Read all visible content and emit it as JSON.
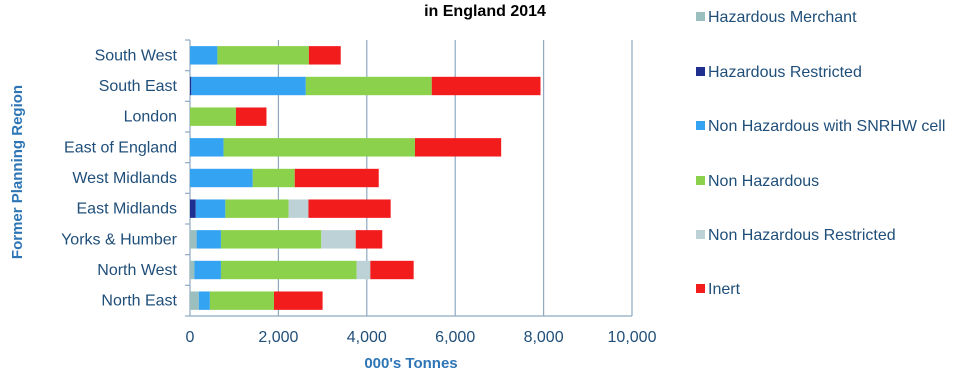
{
  "chart_data": {
    "type": "bar",
    "orientation": "horizontal",
    "stacked": true,
    "title": "in England 2014",
    "xlabel": "000's Tonnes",
    "ylabel": "Former Planning Region",
    "xlim": [
      0,
      10000
    ],
    "xticks": [
      0,
      2000,
      4000,
      6000,
      8000,
      10000
    ],
    "xtick_labels": [
      "0",
      "2,000",
      "4,000",
      "6,000",
      "8,000",
      "10,000"
    ],
    "grid": "vertical",
    "legend_position": "right",
    "categories": [
      "North East",
      "North West",
      "Yorks & Humber",
      "East Midlands",
      "West Midlands",
      "East of England",
      "London",
      "South East",
      "South West"
    ],
    "series": [
      {
        "name": "Hazardous Merchant",
        "color": "#9bbfbf",
        "values": [
          200,
          100,
          150,
          0,
          0,
          0,
          0,
          0,
          0
        ]
      },
      {
        "name": "Hazardous Restricted",
        "color": "#1f2f8f",
        "values": [
          0,
          0,
          0,
          130,
          0,
          0,
          0,
          30,
          0
        ]
      },
      {
        "name": "Non Hazardous with SNRHW cell",
        "color": "#33a3f2",
        "values": [
          250,
          600,
          550,
          670,
          1420,
          760,
          0,
          2590,
          620
        ]
      },
      {
        "name": "Non Hazardous",
        "color": "#8bd14b",
        "values": [
          1450,
          3070,
          2270,
          1430,
          950,
          4330,
          1040,
          2850,
          2070
        ]
      },
      {
        "name": "Non Hazardous Restricted",
        "color": "#bdd2d6",
        "values": [
          0,
          310,
          780,
          450,
          0,
          0,
          0,
          0,
          0
        ]
      },
      {
        "name": "Inert",
        "color": "#f21c1c",
        "values": [
          1100,
          980,
          600,
          1860,
          1900,
          1950,
          690,
          2460,
          720
        ]
      }
    ]
  },
  "legend": {
    "items": [
      {
        "label": "Hazardous Merchant",
        "color": "#9bbfbf"
      },
      {
        "label": "Hazardous Restricted",
        "color": "#1f2f8f"
      },
      {
        "label": "Non Hazardous with SNRHW cell",
        "color": "#33a3f2"
      },
      {
        "label": "Non Hazardous",
        "color": "#8bd14b"
      },
      {
        "label": "Non Hazardous Restricted",
        "color": "#bdd2d6"
      },
      {
        "label": "Inert",
        "color": "#f21c1c"
      }
    ]
  }
}
